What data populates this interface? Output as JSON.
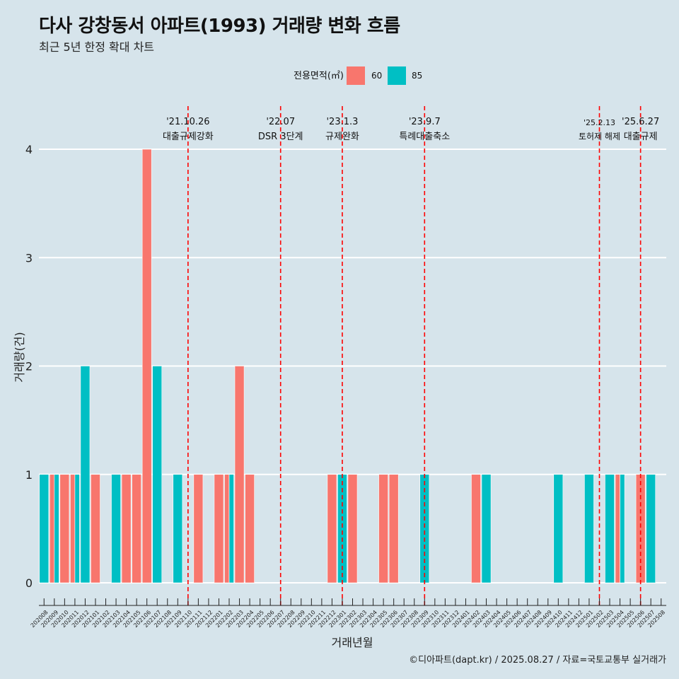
{
  "header": {
    "title": "다사 강창동서 아파트(1993) 거래량 변화 흐름",
    "subtitle": "최근 5년 한정 확대 차트"
  },
  "caption": "©디아파트(dapt.kr) / 2025.08.27 / 자료=국토교통부 실거래가",
  "colors": {
    "background": "#d6e4eb",
    "series_60": "#f8766d",
    "series_85": "#00bfc4",
    "event_line": "#ff0000",
    "grid": "#ffffff"
  },
  "chart_data": {
    "type": "bar",
    "xlabel": "거래년월",
    "ylabel": "거래량(건)",
    "ylim": [
      0,
      4
    ],
    "yticks": [
      0,
      1,
      2,
      3,
      4
    ],
    "grid": true,
    "legend": {
      "title": "전용면적(㎡)",
      "placement": "top",
      "entries": [
        "60",
        "85"
      ]
    },
    "categories": [
      "202008",
      "202009",
      "202010",
      "202011",
      "202012",
      "202101",
      "202102",
      "202103",
      "202104",
      "202105",
      "202106",
      "202107",
      "202108",
      "202109",
      "202110",
      "202111",
      "202112",
      "202201",
      "202202",
      "202203",
      "202204",
      "202205",
      "202206",
      "202207",
      "202208",
      "202209",
      "202210",
      "202211",
      "202212",
      "202301",
      "202302",
      "202303",
      "202304",
      "202305",
      "202306",
      "202307",
      "202308",
      "202309",
      "202310",
      "202311",
      "202312",
      "202401",
      "202402",
      "202403",
      "202404",
      "202405",
      "202406",
      "202407",
      "202408",
      "202409",
      "202410",
      "202411",
      "202412",
      "202501",
      "202502",
      "202503",
      "202504",
      "202505",
      "202506",
      "202507",
      "202508"
    ],
    "series": [
      {
        "name": "60",
        "values": [
          0,
          1,
          1,
          1,
          0,
          1,
          0,
          0,
          1,
          1,
          4,
          0,
          0,
          0,
          0,
          1,
          0,
          1,
          1,
          2,
          1,
          0,
          0,
          0,
          0,
          0,
          0,
          0,
          1,
          0,
          1,
          0,
          0,
          1,
          1,
          0,
          0,
          0,
          0,
          0,
          0,
          0,
          1,
          0,
          0,
          0,
          0,
          0,
          0,
          0,
          0,
          0,
          0,
          0,
          0,
          0,
          1,
          0,
          1,
          0,
          0
        ]
      },
      {
        "name": "85",
        "values": [
          1,
          1,
          0,
          1,
          2,
          0,
          0,
          1,
          0,
          0,
          0,
          2,
          0,
          1,
          0,
          0,
          0,
          0,
          1,
          0,
          0,
          0,
          0,
          0,
          0,
          0,
          0,
          0,
          0,
          1,
          0,
          0,
          0,
          0,
          0,
          0,
          0,
          1,
          0,
          0,
          0,
          0,
          0,
          1,
          0,
          0,
          0,
          0,
          0,
          0,
          1,
          0,
          0,
          1,
          0,
          1,
          1,
          0,
          0,
          1,
          0
        ]
      }
    ],
    "events": [
      {
        "category": "202110",
        "date": "'21.10.26",
        "label": "대출규제강화"
      },
      {
        "category": "202207",
        "date": "'22.07",
        "label": "DSR 3단계"
      },
      {
        "category": "202301",
        "date": "'23.1.3",
        "label": "규제완화"
      },
      {
        "category": "202309",
        "date": "'23.9.7",
        "label": "특례대출축소"
      },
      {
        "category": "202502",
        "date": "'25.2.13",
        "label": "토허제 해제"
      },
      {
        "category": "202506",
        "date": "'25.6.27",
        "label": "대출규제"
      }
    ]
  }
}
